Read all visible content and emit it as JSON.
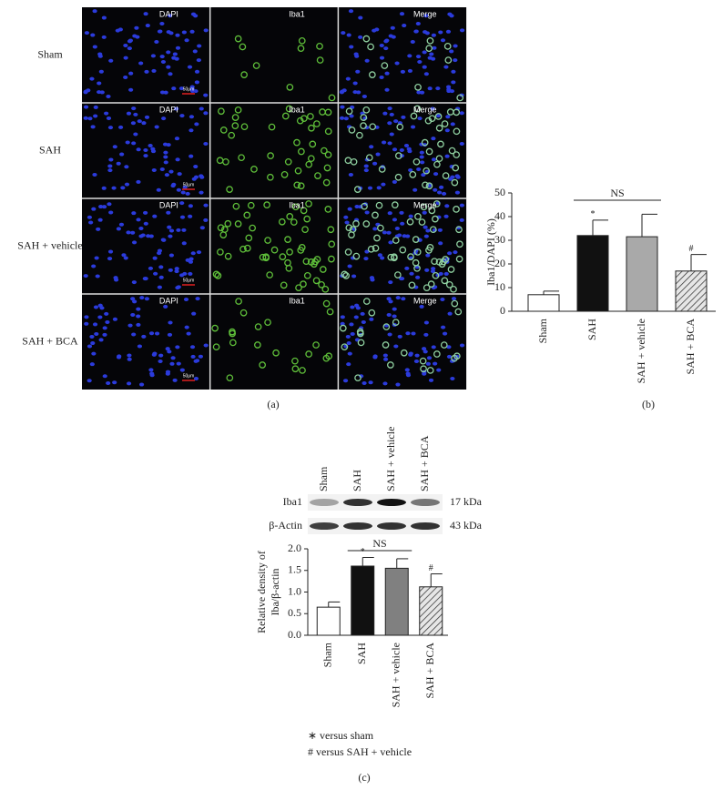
{
  "panel_a": {
    "label": "(a)",
    "rows": [
      "Sham",
      "SAH",
      "SAH + vehicle",
      "SAH + BCA"
    ],
    "columns": [
      "DAPI",
      "Iba1",
      "Merge"
    ],
    "scale_bar": "50μm"
  },
  "chart_data": [
    {
      "type": "bar",
      "label": "(b)",
      "ylabel": [
        "Iba1/DAPI (%)"
      ],
      "categories": [
        "Sham",
        "SAH",
        "SAH + vehicle",
        "SAH + BCA"
      ],
      "values": [
        7,
        32,
        31.5,
        17
      ],
      "errors": [
        1.5,
        6.5,
        9.5,
        7
      ],
      "colors": [
        "#ffffff",
        "#111111",
        "#a9a9a9",
        "#cfcfcf"
      ],
      "hatch": [
        false,
        false,
        false,
        true
      ],
      "markers": [
        null,
        "*",
        null,
        "#"
      ],
      "bracket_label": "NS",
      "ylim": [
        0,
        50
      ],
      "yticks": [
        0,
        10,
        20,
        30,
        40,
        50
      ]
    },
    {
      "type": "bar",
      "label": "(c)",
      "ylabel": [
        "Relative density of",
        "Iba/β-actin"
      ],
      "categories": [
        "Sham",
        "SAH",
        "SAH + vehicle",
        "SAH + BCA"
      ],
      "values": [
        0.65,
        1.6,
        1.55,
        1.12
      ],
      "errors": [
        0.12,
        0.2,
        0.22,
        0.3
      ],
      "colors": [
        "#ffffff",
        "#111111",
        "#808080",
        "#cfcfcf"
      ],
      "hatch": [
        false,
        false,
        false,
        true
      ],
      "markers": [
        null,
        "*",
        null,
        "#"
      ],
      "bracket_label": "NS",
      "ylim": [
        0,
        2
      ],
      "yticks": [
        {
          "value": 0,
          "label": "0.0"
        },
        0.5,
        {
          "value": 1,
          "label": "1.0"
        },
        1.5,
        {
          "value": 2,
          "label": "2.0"
        }
      ]
    }
  ],
  "blot": {
    "lanes": [
      "Sham",
      "SAH",
      "SAH + vehicle",
      "SAH + BCA"
    ],
    "bands": [
      {
        "name": "Iba1",
        "size": "17 kDa"
      },
      {
        "name": "β-Actin",
        "size": "43 kDa"
      }
    ]
  },
  "legend": [
    "∗ versus sham",
    "# versus SAH + vehicle"
  ]
}
